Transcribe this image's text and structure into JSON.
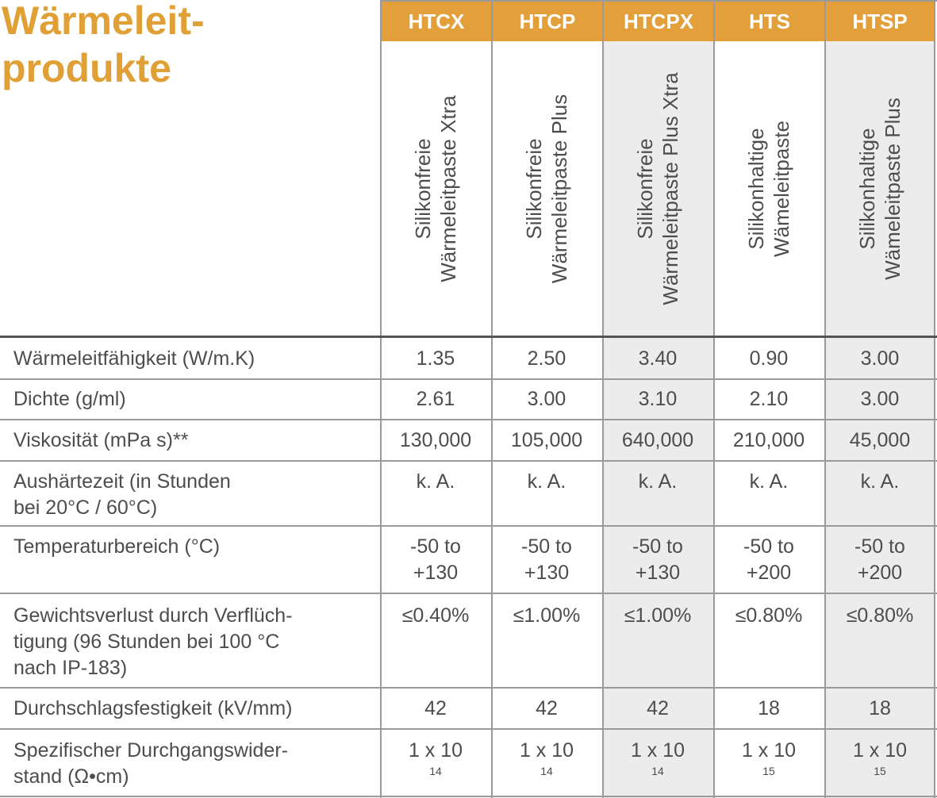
{
  "title": {
    "line1": "Wärmeleit-",
    "line2": "produkte"
  },
  "columns": [
    {
      "code": "HTCX",
      "desc1": "Silikonfreie",
      "desc2": "Wärmeleitpaste Xtra"
    },
    {
      "code": "HTCP",
      "desc1": "Silikonfreie",
      "desc2": "Wärmeleitpaste Plus"
    },
    {
      "code": "HTCPX",
      "desc1": "Silikonfreie",
      "desc2": "Wärmeleitpaste Plus Xtra"
    },
    {
      "code": "HTS",
      "desc1": "Silikonhaltige",
      "desc2": "Wämeleitpaste"
    },
    {
      "code": "HTSP",
      "desc1": "Silikonhaltige",
      "desc2": "Wämeleitpaste Plus"
    }
  ],
  "rows": [
    {
      "label": [
        "Wärmeleitfähigkeit (W/m.K)"
      ],
      "values": [
        [
          "1.35"
        ],
        [
          "2.50"
        ],
        [
          "3.40"
        ],
        [
          "0.90"
        ],
        [
          "3.00"
        ]
      ]
    },
    {
      "label": [
        "Dichte (g/ml)"
      ],
      "values": [
        [
          "2.61"
        ],
        [
          "3.00"
        ],
        [
          "3.10"
        ],
        [
          "2.10"
        ],
        [
          "3.00"
        ]
      ]
    },
    {
      "label": [
        "Viskosität (mPa s)**"
      ],
      "values": [
        [
          "130,000"
        ],
        [
          "105,000"
        ],
        [
          "640,000"
        ],
        [
          "210,000"
        ],
        [
          "45,000"
        ]
      ]
    },
    {
      "label": [
        "Aushärtezeit (in Stunden",
        "bei 20°C / 60°C)"
      ],
      "values": [
        [
          "k. A."
        ],
        [
          "k. A."
        ],
        [
          "k. A."
        ],
        [
          "k. A."
        ],
        [
          "k. A."
        ]
      ]
    },
    {
      "label": [
        "Temperaturbereich (°C)"
      ],
      "values": [
        [
          "-50 to",
          "+130"
        ],
        [
          "-50 to",
          "+130"
        ],
        [
          "-50 to",
          "+130"
        ],
        [
          "-50 to",
          "+200"
        ],
        [
          "-50 to",
          "+200"
        ]
      ]
    },
    {
      "label": [
        "Gewichtsverlust durch Verflüch-",
        "tigung (96 Stunden bei 100 °C",
        "nach IP-183)"
      ],
      "values": [
        [
          "≤0.40%"
        ],
        [
          "≤1.00%"
        ],
        [
          "≤1.00%"
        ],
        [
          "≤0.80%"
        ],
        [
          "≤0.80%"
        ]
      ]
    },
    {
      "label": [
        "Durchschlagsfestigkeit (kV/mm)"
      ],
      "values": [
        [
          "42"
        ],
        [
          "42"
        ],
        [
          "42"
        ],
        [
          "18"
        ],
        [
          "18"
        ]
      ]
    },
    {
      "label": [
        "Spezifischer Durchgangswider-",
        "stand (Ω•cm)"
      ],
      "values": [
        [
          "1 x 10"
        ],
        [
          "1 x 10"
        ],
        [
          "1 x 10"
        ],
        [
          "1 x 10"
        ],
        [
          "1 x 10"
        ]
      ],
      "exponents": [
        "14",
        "14",
        "14",
        "15",
        "15"
      ]
    }
  ]
}
